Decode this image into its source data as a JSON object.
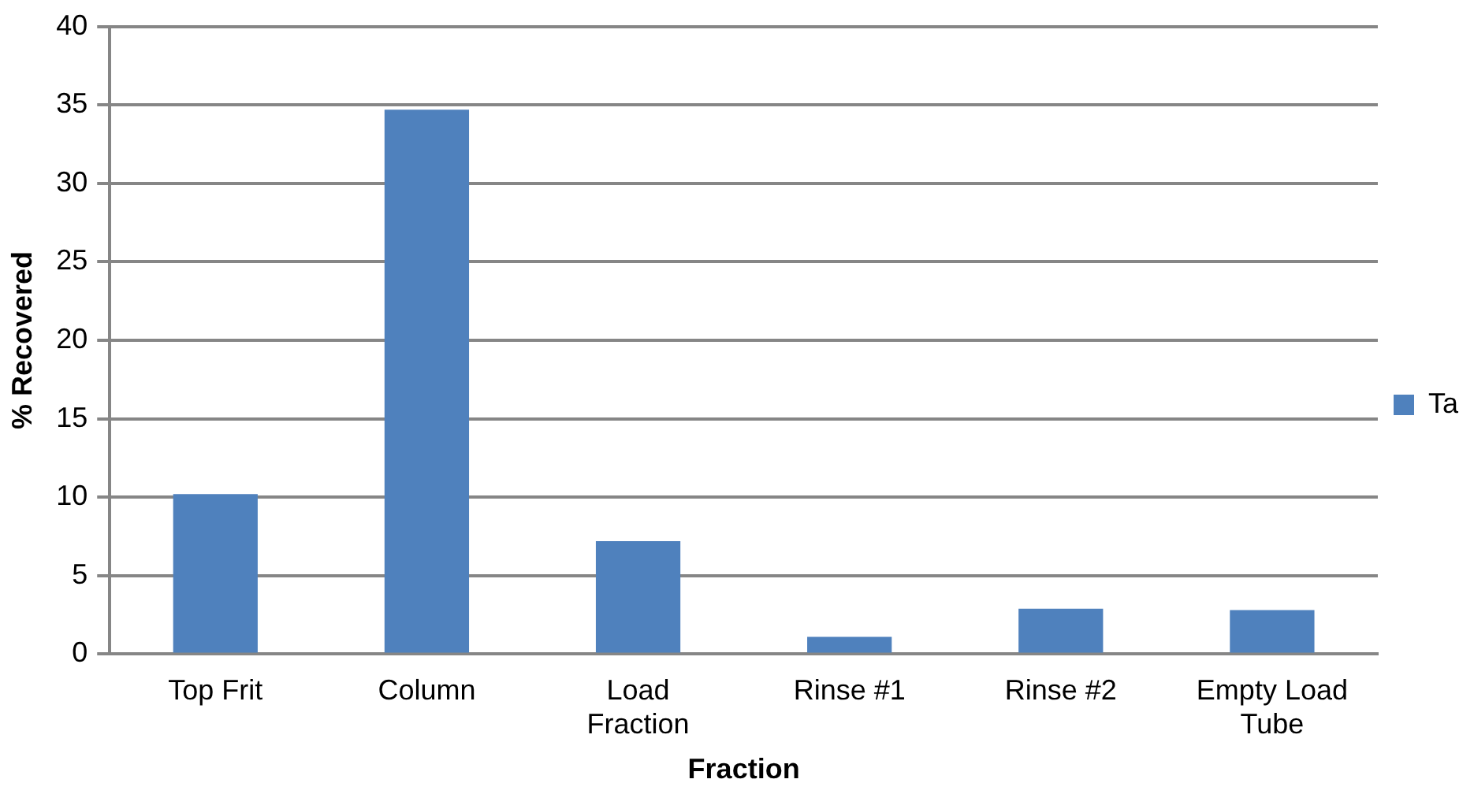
{
  "chart_data": {
    "type": "bar",
    "xlabel": "Fraction",
    "ylabel": "% Recovered",
    "categories": [
      "Top Frit",
      "Column",
      "Load Fraction",
      "Rinse #1",
      "Rinse #2",
      "Empty Load Tube"
    ],
    "series": [
      {
        "name": "Ta",
        "color": "#4f81bd",
        "values": [
          10.2,
          34.7,
          7.2,
          1.1,
          2.9,
          2.8
        ]
      }
    ],
    "ylim": [
      0,
      40
    ],
    "yticks": [
      0,
      5,
      10,
      15,
      20,
      25,
      30,
      35,
      40
    ],
    "grid": "y",
    "legend": "right"
  }
}
